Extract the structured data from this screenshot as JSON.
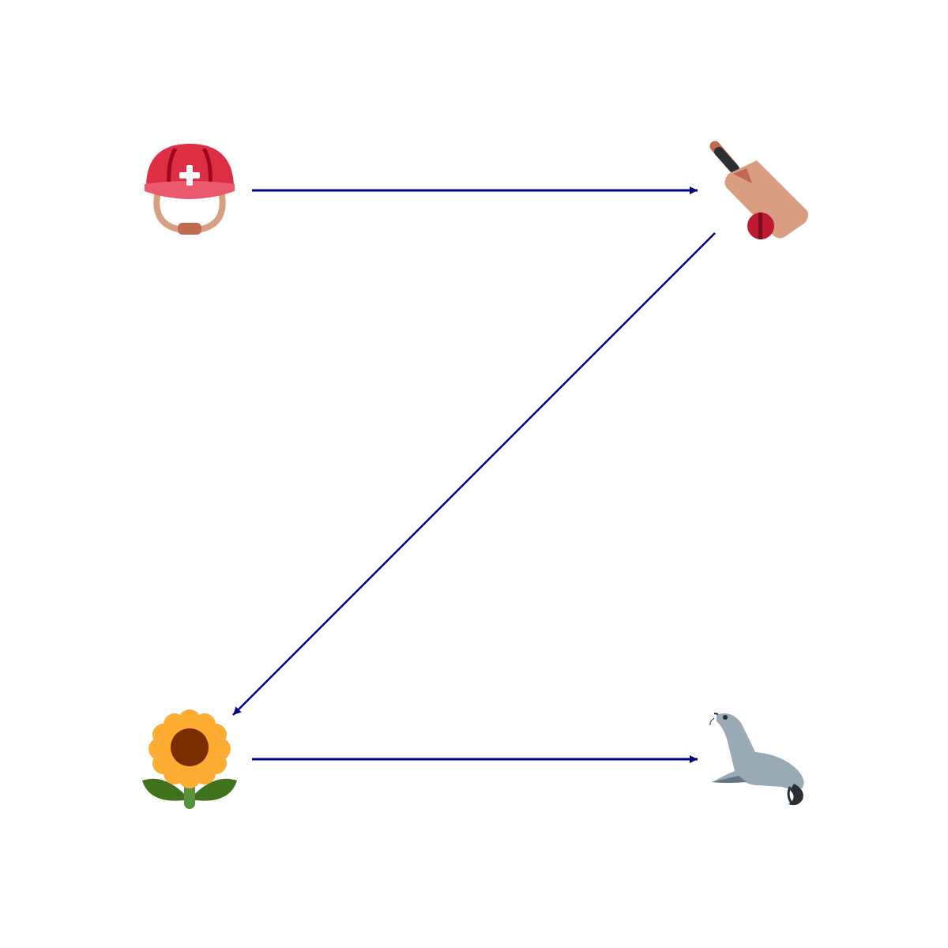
{
  "diagram": {
    "background": "#ffffff",
    "edge_color": "#00008b",
    "nodes": [
      {
        "id": "helmet",
        "icon": "rescue-worker-helmet-icon"
      },
      {
        "id": "cricket",
        "icon": "cricket-bat-and-ball-icon"
      },
      {
        "id": "sunflower",
        "icon": "sunflower-icon"
      },
      {
        "id": "seal",
        "icon": "seal-icon"
      }
    ],
    "edges": [
      {
        "from": "helmet",
        "to": "cricket"
      },
      {
        "from": "cricket",
        "to": "sunflower"
      },
      {
        "from": "sunflower",
        "to": "seal"
      }
    ]
  }
}
